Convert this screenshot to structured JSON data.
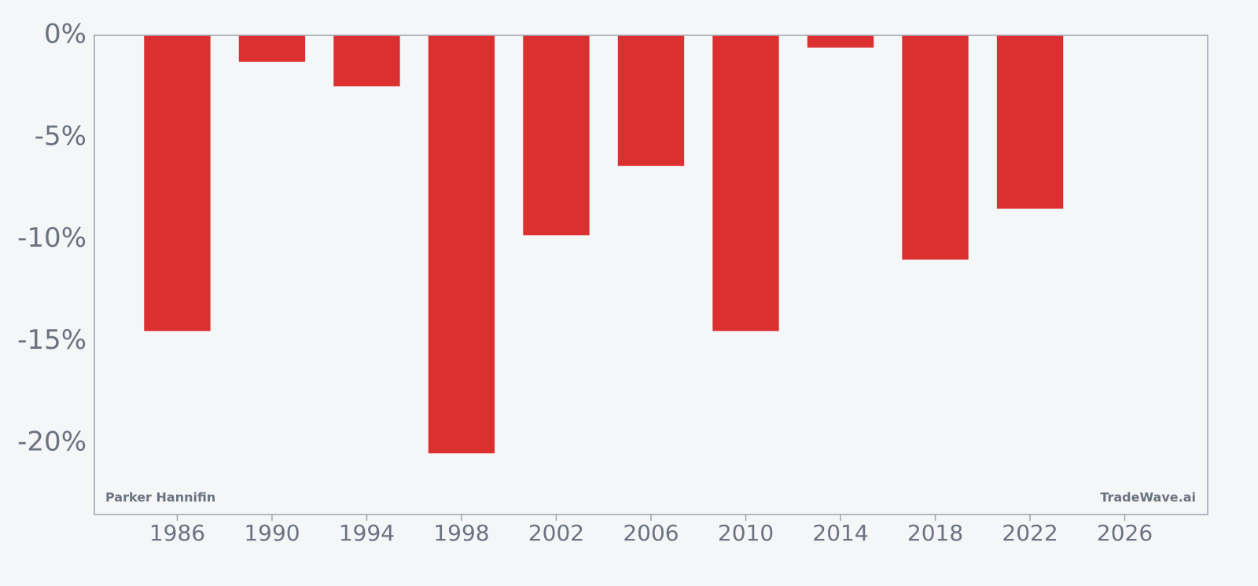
{
  "chart_data": {
    "type": "bar",
    "x": [
      1986,
      1990,
      1994,
      1998,
      2002,
      2006,
      2010,
      2014,
      2018,
      2022
    ],
    "values": [
      -14.5,
      -1.3,
      -2.5,
      -20.5,
      -9.8,
      -6.4,
      -14.5,
      -0.6,
      -11.0,
      -8.5
    ],
    "color": "#dc3030",
    "xlim": [
      1982.5,
      2029.5
    ],
    "xticks": [
      1986,
      1990,
      1994,
      1998,
      2002,
      2006,
      2010,
      2014,
      2018,
      2022,
      2026
    ],
    "ylim": [
      -23.5,
      0
    ],
    "yticks": [
      {
        "value": 0,
        "label": "0%"
      },
      {
        "value": -5,
        "label": "-5%"
      },
      {
        "value": -10,
        "label": "-10%"
      },
      {
        "value": -15,
        "label": "-15%"
      },
      {
        "value": -20,
        "label": "-20%"
      }
    ],
    "annotations": [
      "Parker Hannifin",
      "TradeWave.ai"
    ]
  }
}
